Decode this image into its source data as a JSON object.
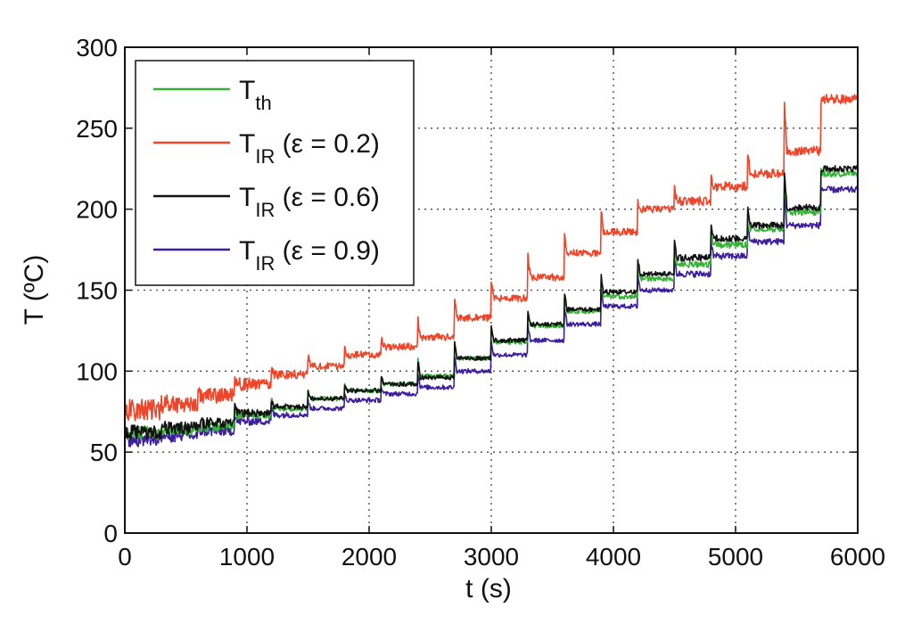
{
  "chart_data": {
    "type": "line",
    "xlabel": "t (s)",
    "ylabel": "T (ºC)",
    "xlim": [
      0,
      6000
    ],
    "ylim": [
      0,
      300
    ],
    "xticks": [
      "0",
      "1000",
      "2000",
      "3000",
      "4000",
      "5000",
      "6000"
    ],
    "yticks": [
      "0",
      "50",
      "100",
      "150",
      "200",
      "250",
      "300"
    ],
    "grid": true,
    "legend_position": "top-left",
    "series": [
      {
        "name": "T_th",
        "label_main": "T",
        "label_sub": "th",
        "label_rest": "",
        "color": "#33b233",
        "x": [
          0,
          300,
          600,
          900,
          1200,
          1500,
          1800,
          2100,
          2400,
          2700,
          3000,
          3300,
          3600,
          3900,
          4200,
          4500,
          4800,
          5100,
          5400,
          5700,
          6000
        ],
        "values": [
          62,
          64,
          66,
          73,
          77,
          83,
          88,
          92,
          97,
          108,
          118,
          128,
          137,
          146,
          157,
          166,
          178,
          188,
          198,
          222,
          224
        ]
      },
      {
        "name": "T_IR (ε = 0.2)",
        "label_main": "T",
        "label_sub": "IR",
        "label_rest": " (ε = 0.2)",
        "color": "#f04428",
        "x": [
          0,
          300,
          600,
          900,
          1200,
          1500,
          1800,
          2100,
          2400,
          2700,
          3000,
          3300,
          3600,
          3900,
          4200,
          4500,
          4800,
          5100,
          5400,
          5700,
          6000
        ],
        "values": [
          76,
          80,
          85,
          92,
          98,
          103,
          110,
          115,
          121,
          133,
          145,
          158,
          173,
          186,
          200,
          205,
          214,
          222,
          236,
          268,
          266
        ]
      },
      {
        "name": "T_IR (ε = 0.6)",
        "label_main": "T",
        "label_sub": "IR",
        "label_rest": " (ε = 0.6)",
        "color": "#111111",
        "x": [
          0,
          300,
          600,
          900,
          1200,
          1500,
          1800,
          2100,
          2400,
          2700,
          3000,
          3300,
          3600,
          3900,
          4200,
          4500,
          4800,
          5100,
          5400,
          5700,
          6000
        ],
        "values": [
          62,
          65,
          68,
          74,
          78,
          83,
          88,
          92,
          96,
          108,
          119,
          129,
          138,
          149,
          160,
          170,
          182,
          190,
          201,
          225,
          225
        ]
      },
      {
        "name": "T_IR (ε = 0.9)",
        "label_main": "T",
        "label_sub": "IR",
        "label_rest": " (ε = 0.9)",
        "color": "#3c1e9c",
        "x": [
          0,
          300,
          600,
          900,
          1200,
          1500,
          1800,
          2100,
          2400,
          2700,
          3000,
          3300,
          3600,
          3900,
          4200,
          4500,
          4800,
          5100,
          5400,
          5700,
          6000
        ],
        "values": [
          58,
          60,
          63,
          69,
          73,
          77,
          82,
          86,
          90,
          100,
          110,
          119,
          129,
          140,
          150,
          160,
          171,
          180,
          190,
          212,
          213
        ]
      }
    ]
  }
}
